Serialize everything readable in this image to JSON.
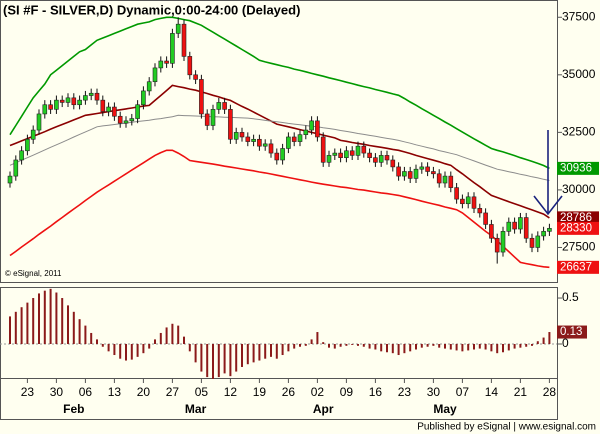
{
  "chart_data": [
    {
      "type": "candlestick",
      "title": "(SI #F - SILVER,D) Dynamic,0:00-24:00 (Delayed)",
      "watermark": "© eSignal, 2011",
      "categories": [
        null,
        null,
        null,
        "23",
        null,
        null,
        null,
        null,
        "30",
        null,
        null,
        null,
        null,
        "06",
        null,
        null,
        null,
        null,
        "13",
        null,
        null,
        null,
        null,
        "20",
        null,
        null,
        null,
        null,
        "27",
        null,
        null,
        null,
        null,
        "05",
        null,
        null,
        null,
        null,
        "12",
        null,
        null,
        null,
        null,
        "19",
        null,
        null,
        null,
        null,
        "26",
        null,
        null,
        null,
        null,
        "02",
        null,
        null,
        null,
        null,
        "09",
        null,
        null,
        null,
        null,
        "16",
        null,
        null,
        null,
        null,
        "23",
        null,
        null,
        null,
        null,
        "30",
        null,
        null,
        null,
        null,
        "07",
        null,
        null,
        null,
        null,
        "14",
        null,
        null,
        null,
        null,
        "21",
        null,
        null,
        null,
        null,
        "28"
      ],
      "months": [
        null,
        null,
        null,
        null,
        null,
        null,
        null,
        null,
        null,
        null,
        null,
        "Feb",
        null,
        null,
        null,
        null,
        null,
        null,
        null,
        null,
        null,
        null,
        null,
        null,
        null,
        null,
        null,
        null,
        null,
        null,
        null,
        null,
        "Mar",
        null,
        null,
        null,
        null,
        null,
        null,
        null,
        null,
        null,
        null,
        null,
        null,
        null,
        null,
        null,
        null,
        null,
        null,
        null,
        null,
        null,
        "Apr",
        null,
        null,
        null,
        null,
        null,
        null,
        null,
        null,
        null,
        null,
        null,
        null,
        null,
        null,
        null,
        null,
        null,
        null,
        null,
        null,
        "May",
        null,
        null,
        null,
        null,
        null,
        null,
        null,
        null,
        null,
        null,
        null,
        null,
        null,
        null,
        null,
        null,
        null,
        null
      ],
      "open": [
        30300,
        30600,
        31300,
        31700,
        32200,
        32600,
        33300,
        33700,
        33500,
        33900,
        33800,
        34000,
        33700,
        33900,
        34100,
        34200,
        33900,
        33400,
        33600,
        33200,
        32900,
        33000,
        33100,
        33700,
        34300,
        34700,
        35300,
        35600,
        35500,
        36800,
        37200,
        35800,
        35000,
        34800,
        33300,
        32800,
        33500,
        33800,
        33500,
        32200,
        32500,
        32300,
        32100,
        32200,
        31900,
        32000,
        31600,
        31300,
        31800,
        32300,
        32100,
        32400,
        32600,
        33000,
        32300,
        31200,
        31500,
        31600,
        31400,
        31700,
        31500,
        31900,
        31600,
        31400,
        31200,
        31500,
        31300,
        31000,
        30600,
        30800,
        30500,
        30900,
        31000,
        30800,
        30700,
        30300,
        30600,
        30100,
        29600,
        29400,
        29700,
        29200,
        29000,
        28500,
        27900,
        27300,
        28200,
        28600,
        28300,
        28800,
        27900,
        27500,
        28000,
        28200
      ],
      "high": [
        30800,
        31500,
        31900,
        32400,
        32800,
        33500,
        33900,
        33900,
        34100,
        34100,
        34200,
        34200,
        34100,
        34300,
        34400,
        34400,
        34100,
        33800,
        33800,
        33400,
        33200,
        33300,
        33900,
        34500,
        34900,
        35500,
        35800,
        35800,
        37000,
        37500,
        37400,
        36000,
        35200,
        35000,
        33500,
        33700,
        34000,
        34000,
        33700,
        32700,
        32700,
        32500,
        32400,
        32400,
        32200,
        32200,
        31800,
        32000,
        32500,
        32500,
        32600,
        32800,
        33200,
        33200,
        32500,
        31700,
        31800,
        31800,
        31900,
        31900,
        32100,
        32100,
        31800,
        31600,
        31700,
        31700,
        31500,
        31200,
        31000,
        31000,
        31100,
        31200,
        31200,
        31000,
        30900,
        30800,
        30800,
        30300,
        29800,
        29900,
        29900,
        29400,
        29200,
        28700,
        28100,
        28400,
        28800,
        28800,
        29000,
        29000,
        28100,
        28200,
        28400,
        28530
      ],
      "low": [
        30100,
        30400,
        31100,
        31500,
        32000,
        32400,
        33100,
        33300,
        33300,
        33600,
        33600,
        33500,
        33500,
        33700,
        33900,
        33700,
        33200,
        33200,
        33000,
        32700,
        32700,
        32800,
        32900,
        33500,
        34100,
        34500,
        35100,
        35300,
        35300,
        36600,
        35600,
        34800,
        34600,
        33100,
        32600,
        32600,
        33300,
        33300,
        32000,
        32000,
        32100,
        31900,
        31900,
        31700,
        31700,
        31400,
        31100,
        31100,
        31600,
        31900,
        31900,
        32200,
        32400,
        32100,
        31000,
        31000,
        31300,
        31200,
        31200,
        31300,
        31300,
        31400,
        31200,
        31000,
        31000,
        31100,
        30800,
        30400,
        30400,
        30300,
        30300,
        30700,
        30600,
        30500,
        30100,
        30100,
        29900,
        29400,
        29200,
        29200,
        29000,
        28800,
        28300,
        27700,
        26800,
        27100,
        28000,
        28100,
        28100,
        27700,
        27300,
        27300,
        27800,
        28000
      ],
      "close": [
        30600,
        31300,
        31700,
        32200,
        32600,
        33300,
        33700,
        33500,
        33900,
        33800,
        34000,
        33700,
        33900,
        34100,
        34200,
        33900,
        33400,
        33600,
        33200,
        32900,
        33000,
        33100,
        33700,
        34300,
        34700,
        35300,
        35600,
        35500,
        36800,
        37200,
        35800,
        35000,
        34800,
        33300,
        32800,
        33500,
        33800,
        33500,
        32200,
        32500,
        32300,
        32100,
        32200,
        31900,
        32000,
        31600,
        31300,
        31800,
        32300,
        32100,
        32400,
        32600,
        33000,
        32300,
        31200,
        31500,
        31600,
        31400,
        31700,
        31500,
        31900,
        31600,
        31400,
        31200,
        31500,
        31300,
        31000,
        30600,
        30800,
        30500,
        30900,
        31000,
        30800,
        30700,
        30300,
        30600,
        30100,
        29600,
        29400,
        29700,
        29200,
        29000,
        28500,
        27900,
        27300,
        28200,
        28600,
        28300,
        28800,
        27900,
        27500,
        28000,
        28200,
        28330
      ],
      "up_color": "#22cc22",
      "down_color": "#ee1111",
      "close_label_color": "#ee1111",
      "series": [
        {
          "color": "#009900",
          "values": [
            32400,
            32800,
            33200,
            33600,
            34000,
            34300,
            34600,
            35000,
            35200,
            35400,
            35600,
            35800,
            36000,
            36100,
            36300,
            36500,
            36600,
            36700,
            36800,
            36900,
            37000,
            37100,
            37200,
            37250,
            37300,
            37400,
            37450,
            37500,
            37500,
            37450,
            37400,
            37350,
            37250,
            37150,
            37000,
            36850,
            36700,
            36550,
            36400,
            36250,
            36100,
            35950,
            35800,
            35630,
            35560,
            35500,
            35440,
            35380,
            35320,
            35250,
            35190,
            35130,
            35060,
            35000,
            34940,
            34870,
            34810,
            34750,
            34680,
            34620,
            34550,
            34490,
            34430,
            34360,
            34300,
            34240,
            34170,
            34110,
            33970,
            33820,
            33680,
            33530,
            33390,
            33240,
            33100,
            32950,
            32810,
            32660,
            32510,
            32370,
            32220,
            32080,
            31940,
            31800,
            31720,
            31650,
            31570,
            31490,
            31400,
            31320,
            31240,
            31150,
            31060,
            30936
          ]
        },
        {
          "color": "#ee1111",
          "values": [
            27150,
            27330,
            27520,
            27700,
            27880,
            28070,
            28250,
            28430,
            28620,
            28800,
            28990,
            29170,
            29350,
            29540,
            29720,
            29900,
            30060,
            30220,
            30380,
            30540,
            30700,
            30860,
            31020,
            31180,
            31340,
            31500,
            31620,
            31720,
            31720,
            31600,
            31450,
            31280,
            31240,
            31200,
            31160,
            31120,
            31080,
            31030,
            30990,
            30950,
            30910,
            30870,
            30830,
            30780,
            30740,
            30690,
            30640,
            30590,
            30540,
            30490,
            30440,
            30390,
            30340,
            30290,
            30250,
            30210,
            30170,
            30130,
            30100,
            30060,
            30020,
            29990,
            29950,
            29910,
            29870,
            29840,
            29800,
            29760,
            29700,
            29640,
            29580,
            29510,
            29450,
            29390,
            29330,
            29260,
            29200,
            29140,
            29000,
            28800,
            28600,
            28400,
            28200,
            28020,
            27790,
            27550,
            27320,
            27080,
            26850,
            26800,
            26750,
            26700,
            26660,
            26637
          ]
        },
        {
          "color": "#8b0000",
          "values": [
            31930,
            32030,
            32130,
            32230,
            32330,
            32430,
            32530,
            32640,
            32740,
            32840,
            32940,
            33040,
            33140,
            33240,
            33280,
            33320,
            33360,
            33400,
            33440,
            33480,
            33520,
            33560,
            33600,
            33640,
            33670,
            33890,
            34100,
            34320,
            34540,
            34490,
            34440,
            34380,
            34330,
            34260,
            34190,
            34110,
            34040,
            33960,
            33890,
            33760,
            33630,
            33510,
            33380,
            33250,
            33120,
            32990,
            32860,
            32800,
            32740,
            32680,
            32620,
            32560,
            32500,
            32440,
            32380,
            32320,
            32260,
            32150,
            32110,
            32060,
            32020,
            31980,
            31930,
            31890,
            31850,
            31810,
            31760,
            31720,
            31650,
            31580,
            31500,
            31430,
            31360,
            31290,
            31220,
            31140,
            31070,
            30880,
            30700,
            30510,
            30320,
            30140,
            29950,
            29760,
            29670,
            29580,
            29490,
            29400,
            29310,
            29220,
            29130,
            29040,
            28950,
            28786
          ]
        },
        {
          "color": "#8c8c8c",
          "values": [
            31070,
            31180,
            31290,
            31400,
            31510,
            31620,
            31740,
            31850,
            31960,
            32070,
            32180,
            32300,
            32410,
            32520,
            32630,
            32740,
            32780,
            32810,
            32840,
            32870,
            32900,
            32940,
            32970,
            33000,
            33030,
            33070,
            33100,
            33140,
            33180,
            33240,
            33230,
            33220,
            33210,
            33200,
            33190,
            33180,
            33170,
            33160,
            33150,
            33140,
            33130,
            33120,
            33090,
            33060,
            33020,
            32990,
            32960,
            32930,
            32890,
            32860,
            32830,
            32800,
            32770,
            32740,
            32700,
            32670,
            32630,
            32580,
            32540,
            32500,
            32450,
            32410,
            32370,
            32330,
            32280,
            32240,
            32200,
            32150,
            32090,
            32030,
            31960,
            31900,
            31840,
            31780,
            31710,
            31650,
            31590,
            31530,
            31440,
            31350,
            31260,
            31170,
            31080,
            30990,
            30900,
            30850,
            30790,
            30740,
            30680,
            30630,
            30570,
            30520,
            30460,
            30410
          ]
        }
      ],
      "labeled_series": [
        0,
        1,
        2
      ],
      "ylim": [
        26000,
        38250
      ],
      "yticks": [
        37500,
        35000,
        32500,
        30000,
        27500
      ]
    },
    {
      "type": "bar",
      "color": "#8b1a1a",
      "values": [
        0.3,
        0.35,
        0.4,
        0.45,
        0.5,
        0.55,
        0.58,
        0.6,
        0.56,
        0.5,
        0.42,
        0.35,
        0.27,
        0.2,
        0.12,
        0.05,
        -0.03,
        -0.08,
        -0.12,
        -0.16,
        -0.18,
        -0.17,
        -0.14,
        -0.1,
        -0.05,
        0.05,
        0.12,
        0.18,
        0.22,
        0.2,
        0.08,
        -0.08,
        -0.2,
        -0.3,
        -0.36,
        -0.38,
        -0.36,
        -0.32,
        -0.35,
        -0.3,
        -0.25,
        -0.22,
        -0.2,
        -0.18,
        -0.16,
        -0.14,
        -0.16,
        -0.12,
        -0.08,
        -0.05,
        -0.03,
        -0.02,
        0.05,
        0.13,
        0.02,
        -0.04,
        -0.05,
        -0.03,
        -0.02,
        -0.01,
        -0.02,
        -0.03,
        -0.05,
        -0.06,
        -0.08,
        -0.09,
        -0.1,
        -0.12,
        -0.1,
        -0.08,
        -0.06,
        -0.04,
        -0.03,
        -0.02,
        -0.04,
        -0.05,
        -0.06,
        -0.07,
        -0.08,
        -0.07,
        -0.06,
        -0.05,
        -0.06,
        -0.08,
        -0.1,
        -0.09,
        -0.07,
        -0.05,
        -0.04,
        -0.03,
        -0.02,
        0.03,
        0.07,
        0.13
      ],
      "ylim": [
        -0.37,
        0.62
      ],
      "yticks": [
        0.5,
        0
      ]
    }
  ],
  "footer": "Published by eSignal | www.esignal.com"
}
